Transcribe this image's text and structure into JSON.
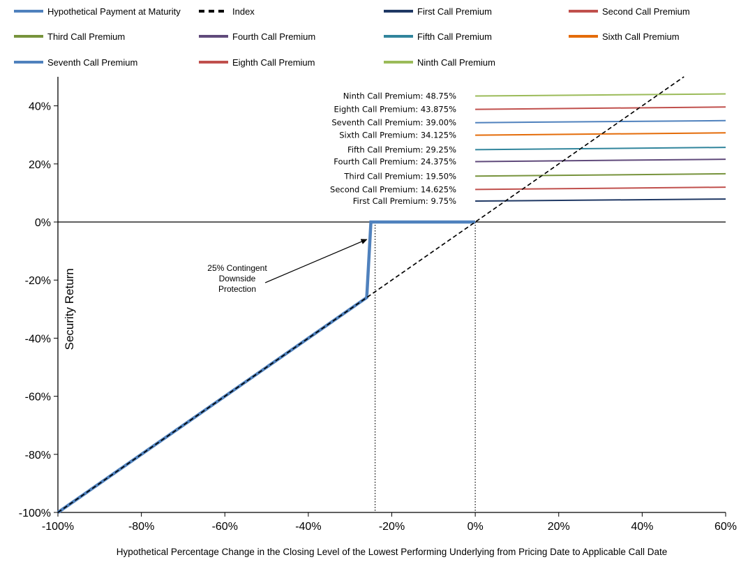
{
  "chart_data": {
    "type": "line",
    "xlabel": "Hypothetical  Percentage  Change  in  the  Closing  Level  of  the  Lowest  Performing  Underlying  from  Pricing  Date  to  Applicable  Call  Date",
    "ylabel": "Security Return",
    "xlim": [
      -100,
      60
    ],
    "ylim": [
      -100,
      50
    ],
    "x_ticks": [
      -100,
      -80,
      -60,
      -40,
      -20,
      0,
      20,
      40,
      60
    ],
    "x_tick_labels": [
      "-100%",
      "-80%",
      "-60%",
      "-40%",
      "-20%",
      "0%",
      "20%",
      "40%",
      "60%"
    ],
    "y_ticks": [
      -100,
      -80,
      -60,
      -40,
      -20,
      0,
      20,
      40
    ],
    "y_tick_labels": [
      "-100%",
      "-80%",
      "-60%",
      "-40%",
      "-20%",
      "0%",
      "20%",
      "40%"
    ],
    "legend_position": "top",
    "series": [
      {
        "name": "Hypothetical Payment at Maturity",
        "color": "#4f81bd",
        "style": "solid-thick",
        "x": [
          -100,
          -26,
          -25,
          0
        ],
        "y": [
          -100,
          -26,
          0,
          0
        ]
      },
      {
        "name": "Index",
        "color": "#000000",
        "style": "dashed",
        "x": [
          -100,
          50
        ],
        "y": [
          -100,
          50
        ]
      },
      {
        "name": "First Call Premium",
        "color": "#1f3864",
        "x": [
          0,
          60
        ],
        "y": [
          7.2,
          7.9
        ],
        "value_label": "First Call Premium: 9.75%"
      },
      {
        "name": "Second Call Premium",
        "color": "#c0504d",
        "x": [
          0,
          60
        ],
        "y": [
          11.2,
          12.0
        ],
        "value_label": "Second Call Premium: 14.625%"
      },
      {
        "name": "Third Call Premium",
        "color": "#77933c",
        "x": [
          0,
          60
        ],
        "y": [
          15.8,
          16.6
        ],
        "value_label": "Third Call Premium: 19.50%"
      },
      {
        "name": "Fourth Call Premium",
        "color": "#604a7b",
        "x": [
          0,
          60
        ],
        "y": [
          20.8,
          21.6
        ],
        "value_label": "Fourth Call Premium: 24.375%"
      },
      {
        "name": "Fifth Call Premium",
        "color": "#31859c",
        "x": [
          0,
          60
        ],
        "y": [
          24.9,
          25.7
        ],
        "value_label": "Fifth Call Premium: 29.25%"
      },
      {
        "name": "Sixth Call Premium",
        "color": "#e46c0a",
        "x": [
          0,
          60
        ],
        "y": [
          29.9,
          30.7
        ],
        "value_label": "Sixth Call Premium: 34.125%"
      },
      {
        "name": "Seventh Call Premium",
        "color": "#4f81bd",
        "x": [
          0,
          60
        ],
        "y": [
          34.2,
          34.9
        ],
        "value_label": "Seventh Call Premium: 39.00%"
      },
      {
        "name": "Eighth Call Premium",
        "color": "#c0504d",
        "x": [
          0,
          60
        ],
        "y": [
          38.8,
          39.6
        ],
        "value_label": "Eighth Call Premium: 43.875%"
      },
      {
        "name": "Ninth Call Premium",
        "color": "#9bbb59",
        "x": [
          0,
          60
        ],
        "y": [
          43.4,
          44.1
        ],
        "value_label": "Ninth Call Premium: 48.75%"
      }
    ],
    "reference_lines": [
      {
        "x": -24,
        "style": "dotted"
      },
      {
        "x": 0,
        "style": "dotted"
      }
    ],
    "annotation": {
      "text_lines": [
        "25% Contingent",
        "Downside",
        "Protection"
      ],
      "arrow_to": {
        "x": -26,
        "y": -6
      }
    }
  }
}
